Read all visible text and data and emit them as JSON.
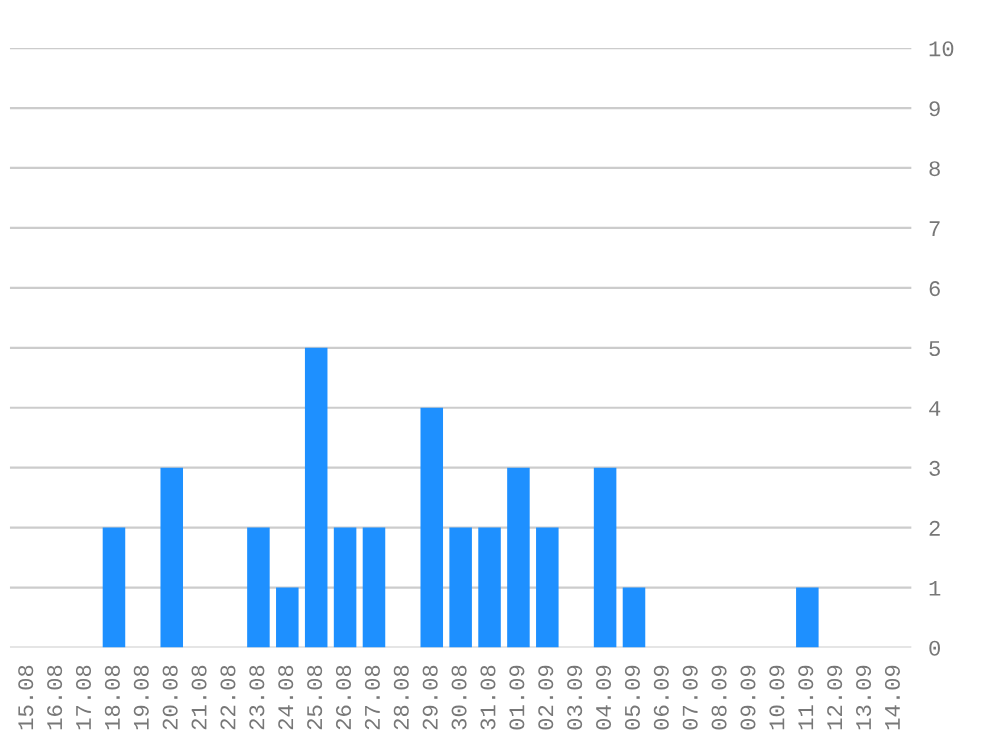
{
  "chart_data": {
    "type": "bar",
    "categories": [
      "15.08",
      "16.08",
      "17.08",
      "18.08",
      "19.08",
      "20.08",
      "21.08",
      "22.08",
      "23.08",
      "24.08",
      "25.08",
      "26.08",
      "27.08",
      "28.08",
      "29.08",
      "30.08",
      "31.08",
      "01.09",
      "02.09",
      "03.09",
      "04.09",
      "05.09",
      "06.09",
      "07.09",
      "08.09",
      "09.09",
      "10.09",
      "11.09",
      "12.09",
      "13.09",
      "14.09"
    ],
    "values": [
      0,
      0,
      0,
      2,
      0,
      3,
      0,
      0,
      2,
      1,
      5,
      2,
      2,
      0,
      4,
      2,
      2,
      3,
      2,
      0,
      3,
      1,
      0,
      0,
      0,
      0,
      0,
      1,
      0,
      0,
      0
    ],
    "color": "#1e90ff",
    "ylim": [
      0,
      10
    ],
    "yticks": [
      0,
      1,
      2,
      3,
      4,
      5,
      6,
      7,
      8,
      9,
      10
    ],
    "grid": "y",
    "legend": false
  }
}
